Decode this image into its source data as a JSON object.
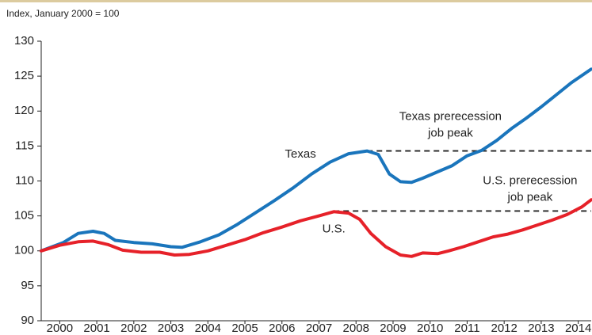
{
  "chart_data": {
    "type": "line",
    "subtitle": "Index, January 2000 = 100",
    "xlim": [
      2000.0,
      2014.85
    ],
    "xticks": [
      {
        "value": 2000.5,
        "label": "2000"
      },
      {
        "value": 2001.5,
        "label": "2001"
      },
      {
        "value": 2002.5,
        "label": "2002"
      },
      {
        "value": 2003.5,
        "label": "2003"
      },
      {
        "value": 2004.5,
        "label": "2004"
      },
      {
        "value": 2005.5,
        "label": "2005"
      },
      {
        "value": 2006.5,
        "label": "2006"
      },
      {
        "value": 2007.5,
        "label": "2007"
      },
      {
        "value": 2008.5,
        "label": "2008"
      },
      {
        "value": 2009.5,
        "label": "2009"
      },
      {
        "value": 2010.5,
        "label": "2010"
      },
      {
        "value": 2011.5,
        "label": "2011"
      },
      {
        "value": 2012.5,
        "label": "2012"
      },
      {
        "value": 2013.5,
        "label": "2013"
      },
      {
        "value": 2014.5,
        "label": "2014"
      }
    ],
    "ylim": [
      90,
      130
    ],
    "yticks": [
      90,
      95,
      100,
      105,
      110,
      115,
      120,
      125,
      130
    ],
    "series": [
      {
        "name": "Texas",
        "color": "#1a75bc",
        "x": [
          2000.0,
          2000.6,
          2001.0,
          2001.4,
          2001.7,
          2002.0,
          2002.5,
          2003.0,
          2003.5,
          2003.8,
          2004.3,
          2004.8,
          2005.3,
          2005.8,
          2006.3,
          2006.8,
          2007.3,
          2007.8,
          2008.3,
          2008.8,
          2009.1,
          2009.4,
          2009.7,
          2010.0,
          2010.3,
          2010.7,
          2011.1,
          2011.5,
          2011.9,
          2012.3,
          2012.7,
          2013.1,
          2013.5,
          2013.9,
          2014.3,
          2014.85
        ],
        "values": [
          100,
          101.2,
          102.5,
          102.8,
          102.5,
          101.5,
          101.2,
          101.0,
          100.6,
          100.5,
          101.3,
          102.3,
          103.8,
          105.5,
          107.2,
          109.0,
          111.0,
          112.7,
          113.9,
          114.3,
          113.8,
          111.0,
          109.9,
          109.8,
          110.4,
          111.3,
          112.2,
          113.6,
          114.4,
          115.8,
          117.5,
          119.0,
          120.6,
          122.3,
          124.0,
          126.0
        ]
      },
      {
        "name": "U.S.",
        "color": "#e62129",
        "x": [
          2000.0,
          2000.5,
          2001.0,
          2001.4,
          2001.8,
          2002.2,
          2002.7,
          2003.2,
          2003.6,
          2004.0,
          2004.5,
          2005.0,
          2005.5,
          2006.0,
          2006.5,
          2007.0,
          2007.5,
          2007.9,
          2008.3,
          2008.6,
          2008.9,
          2009.3,
          2009.7,
          2010.0,
          2010.3,
          2010.7,
          2011.0,
          2011.4,
          2011.8,
          2012.2,
          2012.6,
          2013.0,
          2013.4,
          2013.8,
          2014.2,
          2014.6,
          2014.85
        ],
        "values": [
          100,
          100.8,
          101.3,
          101.4,
          100.9,
          100.1,
          99.8,
          99.8,
          99.4,
          99.5,
          100.0,
          100.8,
          101.6,
          102.6,
          103.4,
          104.3,
          105.0,
          105.6,
          105.4,
          104.5,
          102.5,
          100.6,
          99.4,
          99.2,
          99.7,
          99.6,
          100.0,
          100.6,
          101.3,
          102.0,
          102.4,
          103.0,
          103.7,
          104.4,
          105.2,
          106.3,
          107.3
        ]
      }
    ],
    "reference_lines": [
      {
        "value": 114.3,
        "start": 2008.8
      },
      {
        "value": 105.7,
        "start": 2007.9
      }
    ],
    "annotations": [
      {
        "lines": [
          "Texas"
        ],
        "x": 2007.0,
        "y": 113.8
      },
      {
        "lines": [
          "U.S."
        ],
        "x": 2007.9,
        "y": 103.1
      },
      {
        "lines": [
          "Texas prerecession",
          "job peak"
        ],
        "x": 2011.05,
        "y": 119.2
      },
      {
        "lines": [
          "U.S. prerecession",
          "job peak"
        ],
        "x": 2013.2,
        "y": 110.0
      }
    ]
  }
}
